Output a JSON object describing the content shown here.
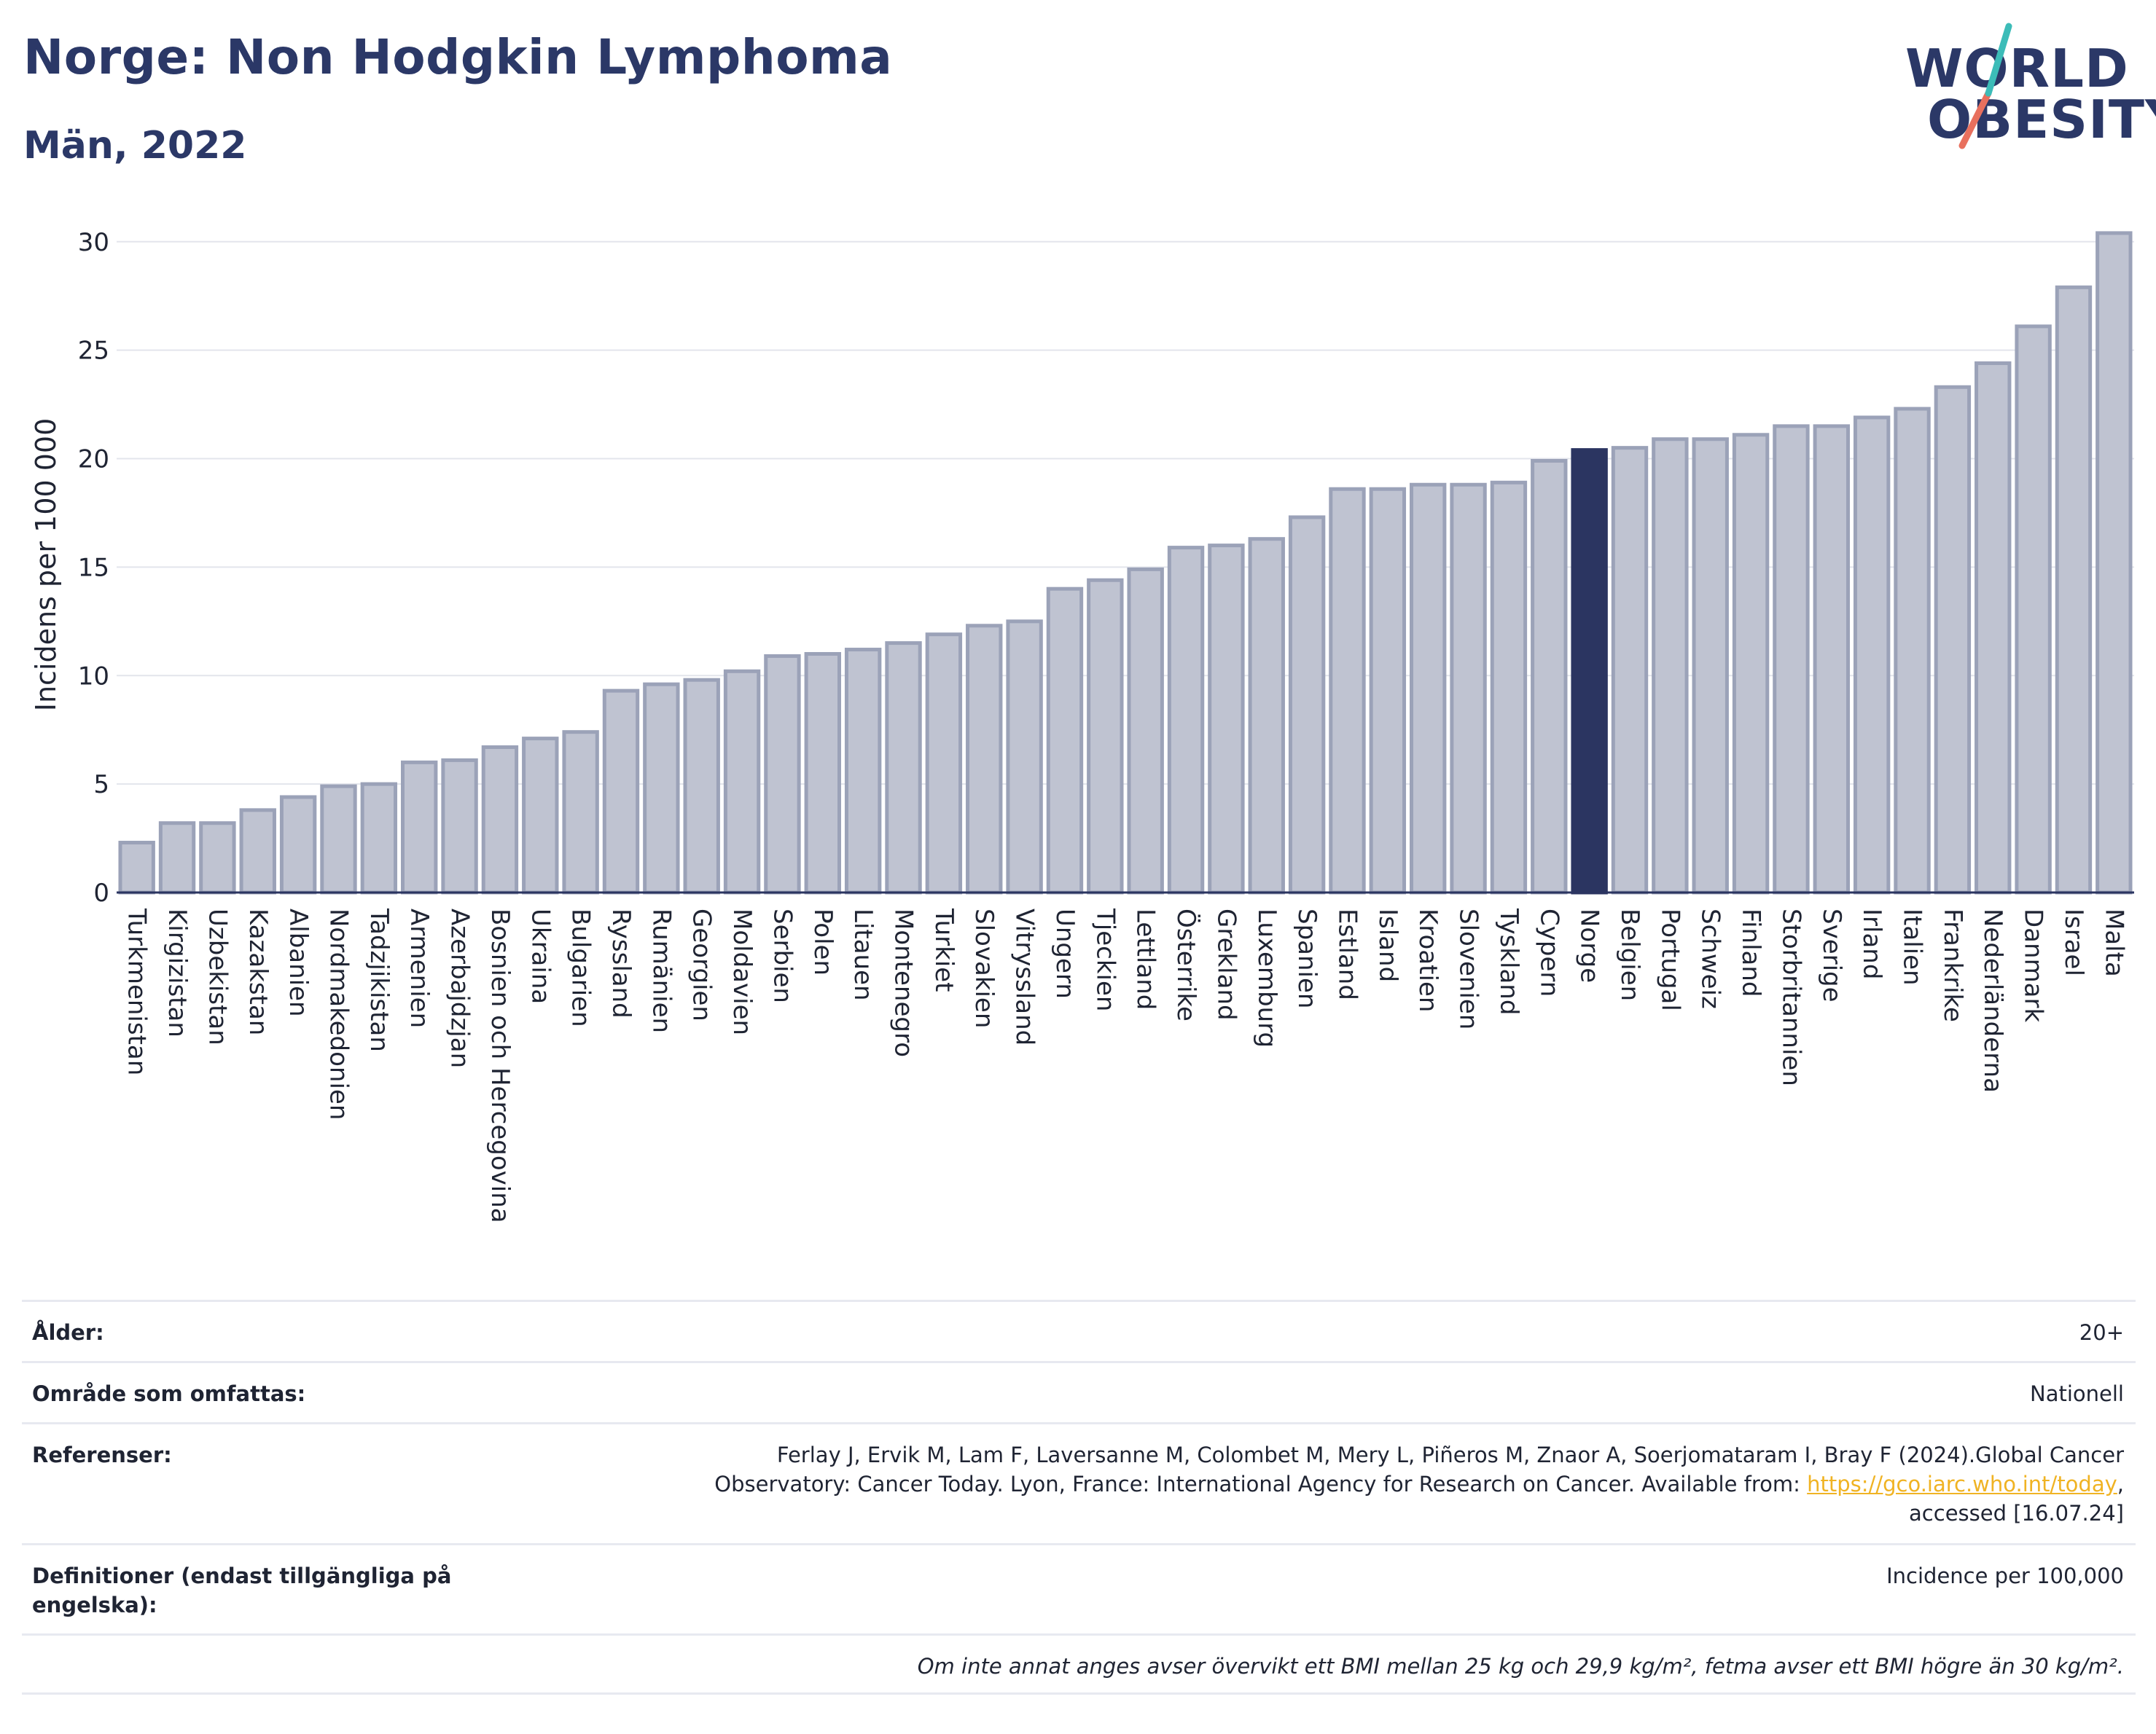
{
  "header": {
    "title": "Norge: Non Hodgkin Lymphoma",
    "subtitle": "Män, 2022"
  },
  "logo": {
    "line1": "WORLD",
    "line2": "OBESITY"
  },
  "colors": {
    "bar": "#bfc3d1",
    "bar_border": "#9ba2b8",
    "highlight": "#2b3561",
    "text": "#1f2433",
    "title": "#2b3867"
  },
  "chart_data": {
    "type": "bar",
    "ylabel": "Incidens per 100 000",
    "xlabel": "",
    "ylim": [
      0,
      30.9
    ],
    "yticks": [
      0,
      5,
      10,
      15,
      20,
      25,
      30
    ],
    "grid": true,
    "highlight": "Norge",
    "categories": [
      "Turkmenistan",
      "Kirgizistan",
      "Uzbekistan",
      "Kazakstan",
      "Albanien",
      "Nordmakedonien",
      "Tadzjikistan",
      "Armenien",
      "Azerbajdzjan",
      "Bosnien och Hercegovina",
      "Ukraina",
      "Bulgarien",
      "Ryssland",
      "Rumänien",
      "Georgien",
      "Moldavien",
      "Serbien",
      "Polen",
      "Litauen",
      "Montenegro",
      "Turkiet",
      "Slovakien",
      "Vitryssland",
      "Ungern",
      "Tjeckien",
      "Lettland",
      "Österrike",
      "Grekland",
      "Luxemburg",
      "Spanien",
      "Estland",
      "Island",
      "Kroatien",
      "Slovenien",
      "Tyskland",
      "Cypern",
      "Norge",
      "Belgien",
      "Portugal",
      "Schweiz",
      "Finland",
      "Storbritannien",
      "Sverige",
      "Irland",
      "Italien",
      "Frankrike",
      "Nederländerna",
      "Danmark",
      "Israel",
      "Malta"
    ],
    "values": [
      2.3,
      3.2,
      3.2,
      3.8,
      4.4,
      4.9,
      5.0,
      6.0,
      6.1,
      6.7,
      7.1,
      7.4,
      9.3,
      9.6,
      9.8,
      10.2,
      10.9,
      11.0,
      11.2,
      11.5,
      11.9,
      12.3,
      12.5,
      14.0,
      14.4,
      14.9,
      15.9,
      16.0,
      16.3,
      17.3,
      18.6,
      18.6,
      18.8,
      18.8,
      18.9,
      19.9,
      20.4,
      20.5,
      20.9,
      20.9,
      21.1,
      21.5,
      21.5,
      21.9,
      22.3,
      23.3,
      24.4,
      26.1,
      27.9,
      30.4
    ]
  },
  "info": {
    "age_label": "Ålder:",
    "age_value": "20+",
    "area_label": "Område som omfattas:",
    "area_value": "Nationell",
    "refs_label": "Referenser:",
    "refs_line1": "Ferlay J, Ervik M, Lam F, Laversanne M, Colombet M, Mery L, Piñeros M, Znaor A, Soerjomataram I, Bray F (2024).Global Cancer",
    "refs_line2": "Observatory: Cancer Today. Lyon, France: International Agency for Research on Cancer. Available from: ",
    "refs_link": "https://gco.iarc.who.int/today",
    "refs_comma": ",",
    "refs_line3": "accessed [16.07.24]",
    "def_label_line1": "Definitioner (endast tillgängliga på",
    "def_label_line2": "engelska):",
    "def_value": "Incidence per 100,000",
    "note": "Om inte annat anges avser övervikt ett BMI mellan 25 kg och 29,9 kg/m², fetma avser ett BMI högre än 30 kg/m²."
  }
}
